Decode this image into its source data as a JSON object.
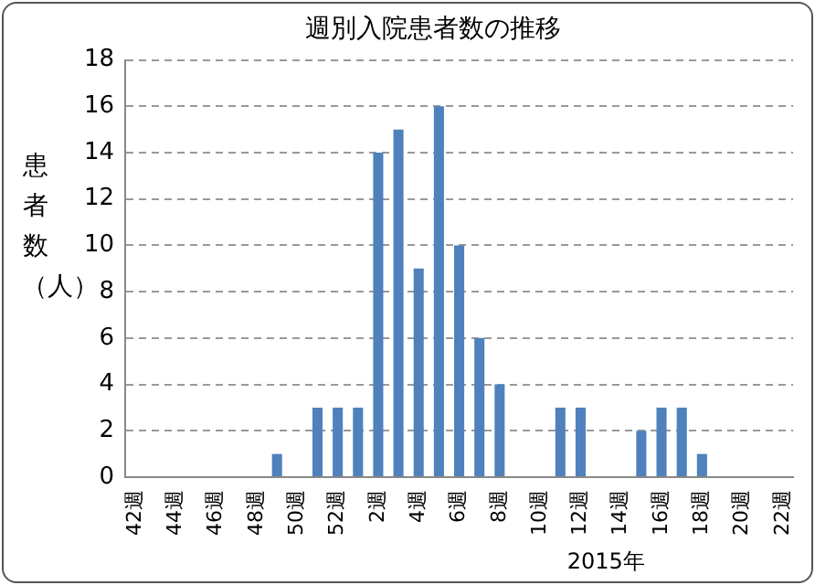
{
  "chart_data": {
    "type": "bar",
    "title": "週別入院患者数の推移",
    "ylabel": "患者数（人）",
    "categories": [
      "42週",
      null,
      "44週",
      null,
      "46週",
      null,
      "48週",
      null,
      "50週",
      null,
      "52週",
      null,
      "2週",
      null,
      "4週",
      null,
      "6週",
      null,
      "8週",
      null,
      "10週",
      null,
      "12週",
      null,
      "14週",
      null,
      "16週",
      null,
      "18週",
      null,
      "20週",
      null,
      "22週"
    ],
    "values": [
      0,
      0,
      0,
      0,
      0,
      0,
      0,
      1,
      0,
      3,
      3,
      3,
      14,
      15,
      9,
      16,
      10,
      6,
      4,
      0,
      0,
      3,
      3,
      0,
      0,
      2,
      3,
      3,
      1,
      0,
      0,
      0,
      0
    ],
    "color": "#4f81bd",
    "ylim": [
      0,
      18
    ],
    "yticks": [
      0,
      2,
      4,
      6,
      8,
      10,
      12,
      14,
      16,
      18
    ],
    "grid": "y",
    "legend": false,
    "annotations": [
      "2015年"
    ]
  }
}
